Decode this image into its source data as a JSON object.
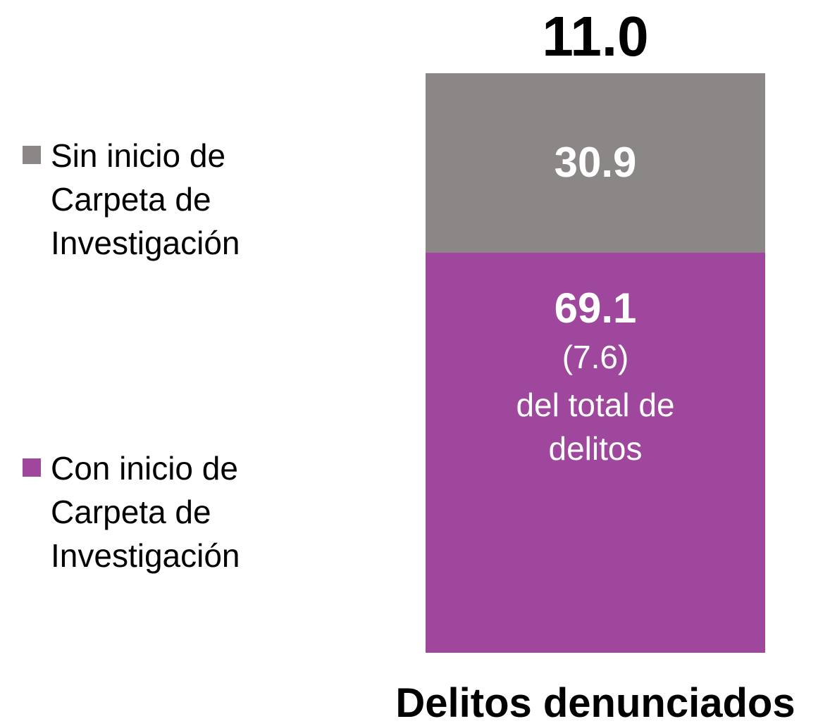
{
  "chart_data": {
    "type": "bar",
    "stacked": true,
    "categories": [
      "Delitos denunciados"
    ],
    "series": [
      {
        "name": "Con inicio de Carpeta de Investigación",
        "color": "#9e479c",
        "values": [
          69.1
        ]
      },
      {
        "name": "Sin inicio de Carpeta de Investigación",
        "color": "#8c8787",
        "values": [
          30.9
        ]
      }
    ],
    "total": {
      "value": 11.0,
      "label": "11.0"
    },
    "share": {
      "value": 7.6,
      "label": "(7.6)"
    },
    "share_note": "del total de delitos",
    "ylim": [
      0,
      100
    ],
    "grid": false,
    "legend": "left"
  }
}
